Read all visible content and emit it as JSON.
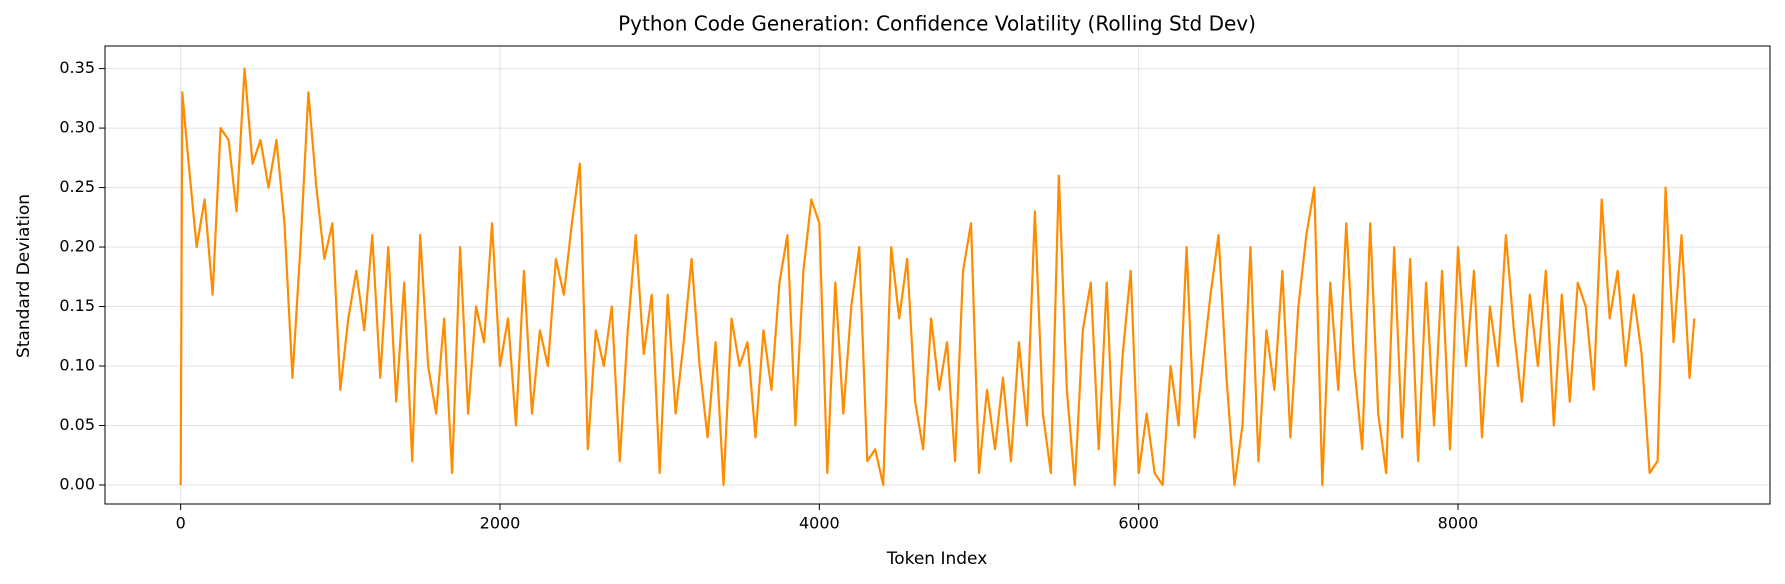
{
  "chart_data": {
    "type": "line",
    "title": "Python Code Generation: Confidence Volatility (Rolling Std Dev)",
    "xlabel": "Token Index",
    "ylabel": "Standard Deviation",
    "xlim": [
      -474,
      9954
    ],
    "ylim": [
      -0.016,
      0.369
    ],
    "xticks": [
      0,
      2000,
      4000,
      6000,
      8000
    ],
    "yticks": [
      {
        "value": 0,
        "label": "0.00"
      },
      {
        "value": 0.05,
        "label": "0.05"
      },
      {
        "value": 0.1,
        "label": "0.10"
      },
      {
        "value": 0.15,
        "label": "0.15"
      },
      {
        "value": 0.2,
        "label": "0.20"
      },
      {
        "value": 0.25,
        "label": "0.25"
      },
      {
        "value": 0.3,
        "label": "0.30"
      },
      {
        "value": 0.35,
        "label": "0.35"
      }
    ],
    "grid": true,
    "x": [
      0,
      10,
      50,
      100,
      150,
      200,
      250,
      300,
      350,
      400,
      450,
      500,
      550,
      600,
      650,
      700,
      750,
      800,
      850,
      900,
      950,
      1000,
      1050,
      1100,
      1150,
      1200,
      1250,
      1300,
      1350,
      1400,
      1450,
      1500,
      1550,
      1600,
      1650,
      1700,
      1750,
      1800,
      1850,
      1900,
      1950,
      2000,
      2050,
      2100,
      2150,
      2200,
      2250,
      2300,
      2350,
      2400,
      2450,
      2500,
      2550,
      2600,
      2650,
      2700,
      2750,
      2800,
      2850,
      2900,
      2950,
      3000,
      3050,
      3100,
      3150,
      3200,
      3250,
      3300,
      3350,
      3400,
      3450,
      3500,
      3550,
      3600,
      3650,
      3700,
      3750,
      3800,
      3850,
      3900,
      3950,
      4000,
      4050,
      4100,
      4150,
      4200,
      4250,
      4300,
      4350,
      4400,
      4450,
      4500,
      4550,
      4600,
      4650,
      4700,
      4750,
      4800,
      4850,
      4900,
      4950,
      5000,
      5050,
      5100,
      5150,
      5200,
      5250,
      5300,
      5350,
      5400,
      5450,
      5500,
      5550,
      5600,
      5650,
      5700,
      5750,
      5800,
      5850,
      5900,
      5950,
      6000,
      6050,
      6100,
      6150,
      6200,
      6250,
      6300,
      6350,
      6400,
      6450,
      6500,
      6550,
      6600,
      6650,
      6700,
      6750,
      6800,
      6850,
      6900,
      6950,
      7000,
      7050,
      7100,
      7150,
      7200,
      7250,
      7300,
      7350,
      7400,
      7450,
      7500,
      7550,
      7600,
      7650,
      7700,
      7750,
      7800,
      7850,
      7900,
      7950,
      8000,
      8050,
      8100,
      8150,
      8200,
      8250,
      8300,
      8350,
      8400,
      8450,
      8500,
      8550,
      8600,
      8650,
      8700,
      8750,
      8800,
      8850,
      8900,
      8950,
      9000,
      9050,
      9100,
      9150,
      9200,
      9250,
      9300,
      9350,
      9400,
      9450,
      9480
    ],
    "series": [
      {
        "name": "Rolling Std Dev",
        "color": "#ff8c00",
        "values": [
          0.0,
          0.33,
          0.27,
          0.2,
          0.24,
          0.16,
          0.3,
          0.29,
          0.23,
          0.35,
          0.27,
          0.29,
          0.25,
          0.29,
          0.22,
          0.09,
          0.2,
          0.33,
          0.25,
          0.19,
          0.22,
          0.08,
          0.14,
          0.18,
          0.13,
          0.21,
          0.09,
          0.2,
          0.07,
          0.17,
          0.02,
          0.21,
          0.1,
          0.06,
          0.14,
          0.01,
          0.2,
          0.06,
          0.15,
          0.12,
          0.22,
          0.1,
          0.14,
          0.05,
          0.18,
          0.06,
          0.13,
          0.1,
          0.19,
          0.16,
          0.22,
          0.27,
          0.03,
          0.13,
          0.1,
          0.15,
          0.02,
          0.13,
          0.21,
          0.11,
          0.16,
          0.01,
          0.16,
          0.06,
          0.12,
          0.19,
          0.1,
          0.04,
          0.12,
          0.0,
          0.14,
          0.1,
          0.12,
          0.04,
          0.13,
          0.08,
          0.17,
          0.21,
          0.05,
          0.18,
          0.24,
          0.22,
          0.01,
          0.17,
          0.06,
          0.15,
          0.2,
          0.02,
          0.03,
          0.0,
          0.2,
          0.14,
          0.19,
          0.07,
          0.03,
          0.14,
          0.08,
          0.12,
          0.02,
          0.18,
          0.22,
          0.01,
          0.08,
          0.03,
          0.09,
          0.02,
          0.12,
          0.05,
          0.23,
          0.06,
          0.01,
          0.26,
          0.08,
          0.0,
          0.13,
          0.17,
          0.03,
          0.17,
          0.0,
          0.11,
          0.18,
          0.01,
          0.06,
          0.01,
          0.0,
          0.1,
          0.05,
          0.2,
          0.04,
          0.1,
          0.16,
          0.21,
          0.09,
          0.0,
          0.05,
          0.2,
          0.02,
          0.13,
          0.08,
          0.18,
          0.04,
          0.15,
          0.21,
          0.25,
          0.0,
          0.17,
          0.08,
          0.22,
          0.1,
          0.03,
          0.22,
          0.06,
          0.01,
          0.2,
          0.04,
          0.19,
          0.02,
          0.17,
          0.05,
          0.18,
          0.03,
          0.2,
          0.1,
          0.18,
          0.04,
          0.15,
          0.1,
          0.21,
          0.13,
          0.07,
          0.16,
          0.1,
          0.18,
          0.05,
          0.16,
          0.07,
          0.17,
          0.15,
          0.08,
          0.24,
          0.14,
          0.18,
          0.1,
          0.16,
          0.11,
          0.01,
          0.02,
          0.25,
          0.12,
          0.21,
          0.09,
          0.14
        ]
      }
    ]
  }
}
